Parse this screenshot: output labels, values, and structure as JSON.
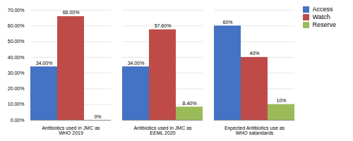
{
  "chart_data": {
    "type": "bar",
    "categories": [
      "Antibiotics used in JMC as\nWHO 2019",
      "Antibiotics used in JMC as\nEEML 2020",
      "Expected Antibiotics use as\nWHO satandards"
    ],
    "series": [
      {
        "name": "Access",
        "color": "#4472C4",
        "values": [
          34.0,
          34.0,
          60.0
        ],
        "value_labels": [
          "34.00%",
          "34.00%",
          "60%"
        ]
      },
      {
        "name": "Watch",
        "color": "#BE4B48",
        "values": [
          66.0,
          57.6,
          40.0
        ],
        "value_labels": [
          "66.00%",
          "57.60%",
          "40%"
        ]
      },
      {
        "name": "Reserve",
        "color": "#9BBB59",
        "values": [
          0.0,
          8.4,
          10.0
        ],
        "value_labels": [
          "0%",
          "8.40%",
          "10%"
        ]
      }
    ],
    "ylim": [
      0,
      70
    ],
    "yticks": [
      {
        "value": 0,
        "label": "0.00%"
      },
      {
        "value": 10,
        "label": "10.00%"
      },
      {
        "value": 20,
        "label": "20.00%"
      },
      {
        "value": 30,
        "label": "30.00%"
      },
      {
        "value": 40,
        "label": "40.00%"
      },
      {
        "value": 50,
        "label": "50.00%"
      },
      {
        "value": 60,
        "label": "60.00%"
      },
      {
        "value": 70,
        "label": "70.00%"
      }
    ],
    "grid": true,
    "data_labels": true,
    "legend": "upper right"
  }
}
